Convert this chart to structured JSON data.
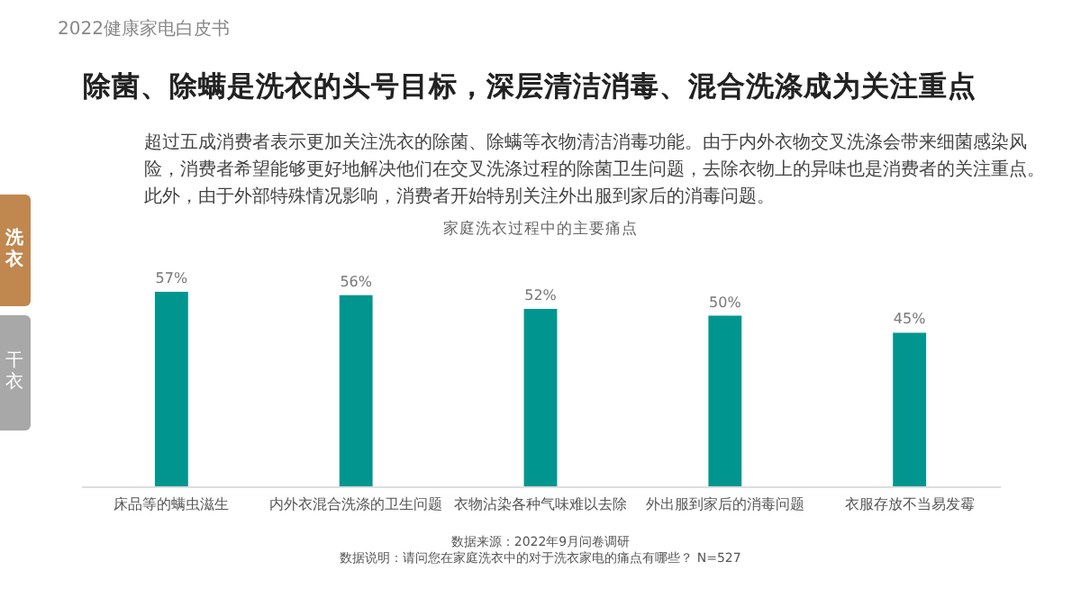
{
  "chart_data": {
    "type": "bar",
    "title": "家庭洗衣过程中的主要痛点",
    "categories": [
      "床品等的螨虫滋生",
      "内外衣混合洗涤的卫生问题",
      "衣物沾染各种气味难以去除",
      "外出服到家后的消毒问题",
      "衣服存放不当易发霉"
    ],
    "values": [
      57,
      56,
      52,
      50,
      45
    ],
    "color": "#00968f",
    "value_labels": [
      "57%",
      "56%",
      "52%",
      "50%",
      "45%"
    ],
    "annotations": [
      "2022健康家电白皮书",
      "除菌、除螨是洗衣的头号目标，深层清洁消毒、混合洗涤成为关注重点",
      "超过五成消费者表示更加关注洗衣的除菌、除螨等衣物清洁消毒功能。由于内外衣物交叉洗涤会带来细菌感染风险，消费者希望能够更好地解决他们在交叉洗涤过程的除菌卫生问题，去除衣物上的异味也是消费者的关注重点。此外，由于外部特殊情况影响，消费者开始特别关注外出服到家后的消毒问题。",
      "洗衣",
      "干衣",
      "数据来源：2022年9月问卷调研",
      "数据说明：请问您在家庭洗衣中的对于洗衣家电的痛点有哪些？ N=527"
    ]
  }
}
